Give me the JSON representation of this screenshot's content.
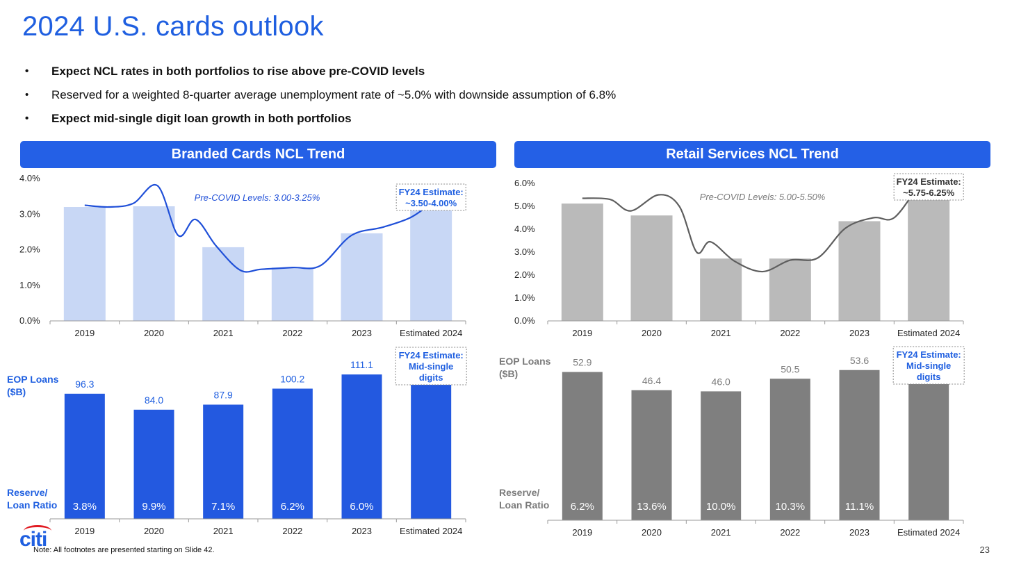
{
  "page": {
    "title": "2024 U.S. cards outlook",
    "bullets": [
      {
        "text": "Expect NCL rates in both portfolios to rise above pre-COVID levels",
        "bold": true
      },
      {
        "text": "Reserved for a weighted 8-quarter average unemployment rate of ~5.0% with downside assumption of 6.8%",
        "bold": false
      },
      {
        "text": "Expect mid-single digit loan growth in both portfolios",
        "bold": true
      }
    ],
    "footnote": "Note:  All footnotes are presented starting on Slide 42.",
    "page_number": "23",
    "logo_text": "citi"
  },
  "colors": {
    "accent": "#1f5fe0",
    "header_bar": "#2460e6",
    "branded_ncl_bar": "#c8d7f5",
    "branded_loan_bar": "#2359e0",
    "branded_line": "#1f4fd8",
    "retail_ncl_bar": "#bababa",
    "retail_loan_bar": "#7f7f7f",
    "retail_line": "#5e5e5e",
    "logo_arc": "#e11b22"
  },
  "panels": {
    "branded": {
      "header": "Branded Cards NCL Trend"
    },
    "retail": {
      "header": "Retail Services NCL Trend"
    }
  },
  "chart_data": [
    {
      "id": "branded-ncl",
      "type": "bar",
      "title": "Branded Cards NCL Trend",
      "categories": [
        "2019",
        "2020",
        "2021",
        "2022",
        "2023",
        "Estimated 2024"
      ],
      "values": [
        3.2,
        3.22,
        2.07,
        1.5,
        2.46,
        3.25
      ],
      "ylim": [
        0,
        4.0
      ],
      "yticks": [
        "0.0%",
        "1.0%",
        "2.0%",
        "3.0%",
        "4.0%"
      ],
      "line": {
        "label": "Pre-COVID Levels: 3.00-3.25%",
        "x": [
          0,
          0.35,
          0.7,
          1.05,
          1.35,
          1.6,
          1.9,
          2.25,
          2.55,
          3.0,
          3.4,
          3.85,
          4.3,
          4.7,
          5.0
        ],
        "y": [
          3.25,
          3.2,
          3.3,
          3.8,
          2.4,
          2.85,
          2.1,
          1.42,
          1.45,
          1.5,
          1.55,
          2.4,
          2.63,
          2.9,
          3.3
        ]
      },
      "estimate_note": "FY24 Estimate: ~3.50-4.00%",
      "grid": false
    },
    {
      "id": "retail-ncl",
      "type": "bar",
      "title": "Retail Services NCL Trend",
      "categories": [
        "2019",
        "2020",
        "2021",
        "2022",
        "2023",
        "Estimated 2024"
      ],
      "values": [
        5.12,
        4.6,
        2.72,
        2.72,
        4.35,
        5.3
      ],
      "ylim": [
        0,
        6.0
      ],
      "yticks": [
        "0.0%",
        "1.0%",
        "2.0%",
        "3.0%",
        "4.0%",
        "5.0%",
        "6.0%"
      ],
      "line": {
        "label": "Pre-COVID Levels: 5.00-5.50%",
        "x": [
          0,
          0.4,
          0.7,
          1.1,
          1.4,
          1.65,
          1.85,
          2.2,
          2.6,
          3.0,
          3.4,
          3.8,
          4.2,
          4.5,
          4.85
        ],
        "y": [
          5.35,
          5.3,
          4.8,
          5.5,
          5.0,
          3.0,
          3.45,
          2.6,
          2.15,
          2.65,
          2.75,
          4.05,
          4.5,
          4.5,
          5.9
        ]
      },
      "estimate_note": "FY24 Estimate: ~5.75-6.25%",
      "grid": false
    },
    {
      "id": "branded-loans",
      "type": "bar",
      "title": "",
      "ylabel": "EOP Loans ($B)",
      "categories": [
        "2019",
        "2020",
        "2021",
        "2022",
        "2023",
        "Estimated 2024"
      ],
      "values": [
        96.3,
        84.0,
        87.9,
        100.2,
        111.1,
        118
      ],
      "value_labels": [
        "96.3",
        "84.0",
        "87.9",
        "100.2",
        "111.1",
        ""
      ],
      "ratio_label": "Reserve/ Loan Ratio",
      "ratios": [
        "3.8%",
        "9.9%",
        "7.1%",
        "6.2%",
        "6.0%",
        ""
      ],
      "estimate_note": "FY24 Estimate: Mid-single digits"
    },
    {
      "id": "retail-loans",
      "type": "bar",
      "title": "",
      "ylabel": "EOP Loans ($B)",
      "categories": [
        "2019",
        "2020",
        "2021",
        "2022",
        "2023",
        "Estimated 2024"
      ],
      "values": [
        52.9,
        46.4,
        46.0,
        50.5,
        53.6,
        56
      ],
      "value_labels": [
        "52.9",
        "46.4",
        "46.0",
        "50.5",
        "53.6",
        ""
      ],
      "ratio_label": "Reserve/ Loan Ratio",
      "ratios": [
        "6.2%",
        "13.6%",
        "10.0%",
        "10.3%",
        "11.1%",
        ""
      ],
      "estimate_note": "FY24 Estimate: Mid-single digits"
    }
  ]
}
